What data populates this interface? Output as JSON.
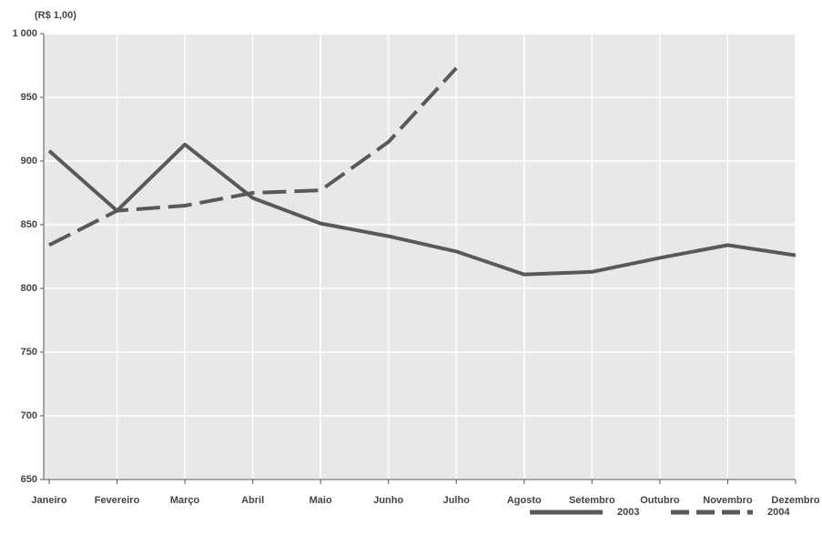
{
  "chart_data": {
    "type": "line",
    "y_axis_label": "(R$ 1,00)",
    "categories": [
      "Janeiro",
      "Fevereiro",
      "Março",
      "Abril",
      "Maio",
      "Junho",
      "Julho",
      "Agosto",
      "Setembro",
      "Outubro",
      "Novembro",
      "Dezembro"
    ],
    "series": [
      {
        "name": "2003",
        "color": "#595959",
        "dash": "solid",
        "values": [
          908,
          861,
          913,
          871,
          851,
          841,
          829,
          811,
          813,
          824,
          834,
          826
        ]
      },
      {
        "name": "2004",
        "color": "#595959",
        "dash": "dashed",
        "values": [
          834,
          861,
          865,
          875,
          877,
          915,
          973,
          null,
          null,
          null,
          null,
          null
        ]
      }
    ],
    "ylim": [
      650,
      1000
    ],
    "yticks": [
      650,
      700,
      750,
      800,
      850,
      900,
      950,
      {
        "value": 1000,
        "label": "1 000"
      }
    ],
    "grid": true,
    "background": "#e8e8e8",
    "legend": "bottom-right"
  }
}
